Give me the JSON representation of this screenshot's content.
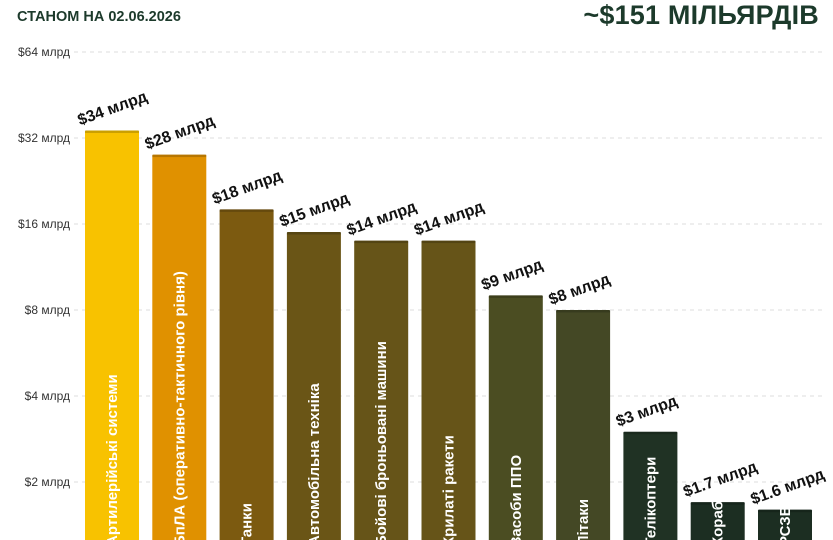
{
  "header": {
    "as_of": "СТАНОМ НА 02.06.2026",
    "total": "~$151 МІЛЬЯРДІВ"
  },
  "chart_data": {
    "type": "bar",
    "title": "",
    "xlabel": "",
    "ylabel": "",
    "y_scale": "log2",
    "ylim": [
      1.2,
      64
    ],
    "y_ticks": [
      {
        "value": 2,
        "label": "$2 млрд"
      },
      {
        "value": 4,
        "label": "$4 млрд"
      },
      {
        "value": 8,
        "label": "$8 млрд"
      },
      {
        "value": 16,
        "label": "$16 млрд"
      },
      {
        "value": 32,
        "label": "$32 млрд"
      },
      {
        "value": 64,
        "label": "$64 млрд"
      }
    ],
    "grid": true,
    "bars": [
      {
        "category": "Артилерійські системи",
        "value": 34,
        "value_label": "$34 млрд",
        "color": "#f8c200"
      },
      {
        "category": "БпЛА (оперативно-тактичного рівня)",
        "value": 28,
        "value_label": "$28 млрд",
        "color": "#e09100"
      },
      {
        "category": "Танки",
        "value": 18,
        "value_label": "$18 млрд",
        "color": "#7c5a10"
      },
      {
        "category": "Автомобільна техніка",
        "value": 15,
        "value_label": "$15 млрд",
        "color": "#6a5516"
      },
      {
        "category": "Бойові броньовані машини",
        "value": 14,
        "value_label": "$14 млрд",
        "color": "#665418"
      },
      {
        "category": "Крилаті ракети",
        "value": 14,
        "value_label": "$14 млрд",
        "color": "#665418"
      },
      {
        "category": "Засоби ППО",
        "value": 9,
        "value_label": "$9 млрд",
        "color": "#4b4d22"
      },
      {
        "category": "Літаки",
        "value": 8,
        "value_label": "$8 млрд",
        "color": "#444825"
      },
      {
        "category": "Гелікоптери",
        "value": 3,
        "value_label": "$3 млрд",
        "color": "#203224"
      },
      {
        "category": "Кораблі",
        "value": 1.7,
        "value_label": "$1.7 млрд",
        "color": "#1c2e22"
      },
      {
        "category": "РСЗВ",
        "value": 1.6,
        "value_label": "$1.6 млрд",
        "color": "#1c2e22"
      }
    ]
  }
}
